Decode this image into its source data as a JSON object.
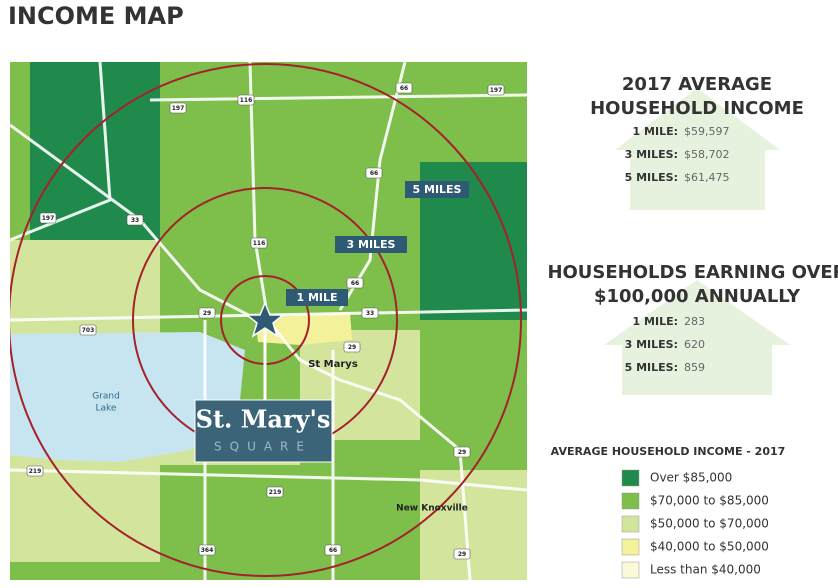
{
  "title": "INCOME MAP",
  "map": {
    "rings": [
      {
        "label": "1 MILE"
      },
      {
        "label": "3 MILES"
      },
      {
        "label": "5 MILES"
      }
    ],
    "places": {
      "town": "St Marys",
      "lake": [
        "Grand",
        "Lake"
      ],
      "village": "New Knoxville"
    },
    "logo": {
      "name": "St. Mary's",
      "tagline": "SQUARE"
    },
    "roads": [
      "197",
      "197",
      "197",
      "116",
      "116",
      "66",
      "66",
      "66",
      "33",
      "33",
      "29",
      "29",
      "29",
      "29",
      "703",
      "219",
      "219",
      "364",
      "66"
    ]
  },
  "income_panel": {
    "title": [
      "2017 AVERAGE",
      "HOUSEHOLD INCOME"
    ],
    "rows": [
      {
        "label": "1 MILE:",
        "value": "$59,597"
      },
      {
        "label": "3 MILES:",
        "value": "$58,702"
      },
      {
        "label": "5 MILES:",
        "value": "$61,475"
      }
    ]
  },
  "households_panel": {
    "title": [
      "HOUSEHOLDS EARNING OVER",
      "$100,000 ANNUALLY"
    ],
    "rows": [
      {
        "label": "1 MILE:",
        "value": "283"
      },
      {
        "label": "3 MILES:",
        "value": "620"
      },
      {
        "label": "5 MILES:",
        "value": "859"
      }
    ]
  },
  "legend": {
    "title": "AVERAGE HOUSEHOLD INCOME - 2017",
    "items": [
      {
        "label": "Over $85,000",
        "color": "#1f8a4c"
      },
      {
        "label": "$70,000 to $85,000",
        "color": "#7dbf4a"
      },
      {
        "label": "$50,000 to $70,000",
        "color": "#d3e59d"
      },
      {
        "label": "$40,000 to $50,000",
        "color": "#f3f19a"
      },
      {
        "label": "Less than $40,000",
        "color": "#fbf9d8"
      }
    ]
  }
}
